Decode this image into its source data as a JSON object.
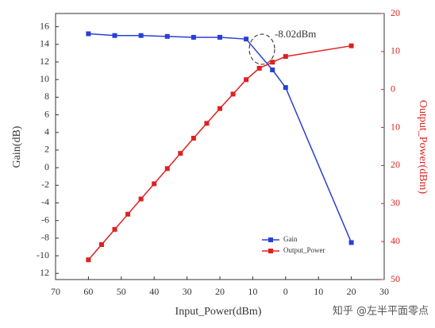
{
  "chart_data": {
    "type": "line",
    "x_label": "Input_Power(dBm)",
    "y_label": "Gain(dB)",
    "y2_label": "Output_Power(dBm)",
    "annotation": "-8.02dBm",
    "watermark": "知乎 @左半平面零点",
    "xlim": [
      -70,
      30
    ],
    "ylim": [
      -12.7,
      17.5
    ],
    "y2lim": [
      -50,
      20
    ],
    "xticks": [
      {
        "value": -70,
        "label": "70"
      },
      {
        "value": -60,
        "label": "60"
      },
      {
        "value": -50,
        "label": "50"
      },
      {
        "value": -40,
        "label": "40"
      },
      {
        "value": -30,
        "label": "30"
      },
      {
        "value": -20,
        "label": "20"
      },
      {
        "value": -10,
        "label": "10"
      },
      0,
      10,
      20,
      30
    ],
    "yticks": [
      16,
      14,
      12,
      10,
      8,
      6,
      4,
      2,
      0,
      -2,
      -4,
      -6,
      -8,
      -10,
      {
        "value": -12,
        "label": "12"
      }
    ],
    "y2ticks": [
      20,
      10,
      0,
      {
        "value": -10,
        "label": "10"
      },
      {
        "value": -20,
        "label": "20"
      },
      {
        "value": -30,
        "label": "30"
      },
      {
        "value": -40,
        "label": "40"
      },
      {
        "value": -50,
        "label": "50"
      }
    ],
    "legend": "lower right",
    "series": [
      {
        "name": "Gain",
        "color": "#2a3fd6",
        "axis": "y",
        "x": [
          -60,
          -52,
          -44,
          -36,
          -28,
          -20,
          -12,
          -4,
          0,
          20
        ],
        "values": [
          15.2,
          15.0,
          15.0,
          14.9,
          14.8,
          14.8,
          14.6,
          11.1,
          9.1,
          -8.5
        ]
      },
      {
        "name": "Output_Power",
        "color": "#e02020",
        "axis": "y2",
        "x": [
          -60,
          -56,
          -52,
          -48,
          -44,
          -40,
          -36,
          -32,
          -28,
          -24,
          -20,
          -16,
          -12,
          -8,
          -4,
          0,
          20
        ],
        "values": [
          -44.8,
          -40.8,
          -36.8,
          -32.8,
          -28.8,
          -24.8,
          -20.8,
          -16.8,
          -12.8,
          -8.9,
          -5.0,
          -1.2,
          2.6,
          5.6,
          7.2,
          8.7,
          11.5
        ]
      }
    ]
  }
}
